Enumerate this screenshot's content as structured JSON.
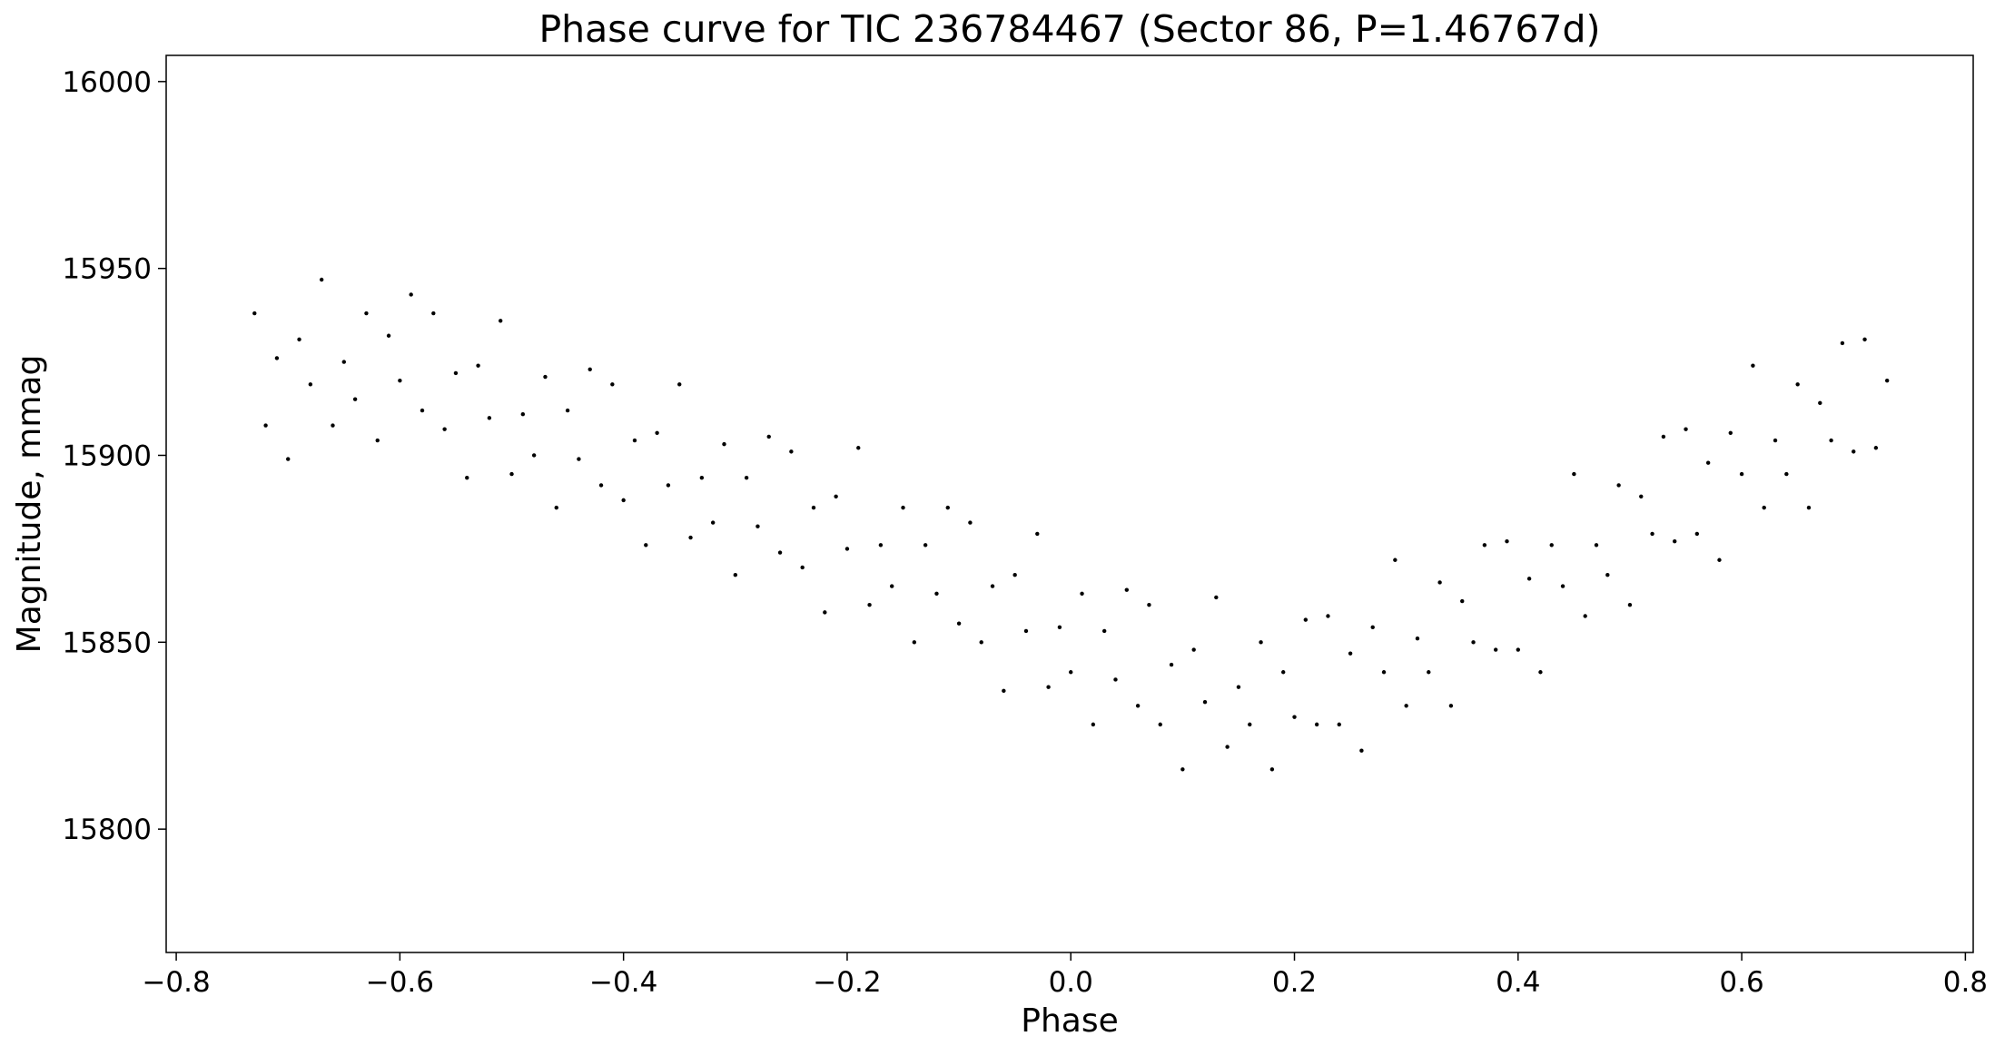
{
  "chart_data": {
    "type": "scatter",
    "title": "Phase curve for TIC 236784467 (Sector 86, P=1.46767d)",
    "x_label": "Phase",
    "y_label": "Magnitude, mmag",
    "color": "#000000",
    "xlim": [
      -0.809,
      0.807
    ],
    "ylim": [
      15767,
      16007
    ],
    "xticks": [
      {
        "value": -0.8,
        "label": "−0.8"
      },
      {
        "value": -0.6,
        "label": "−0.6"
      },
      {
        "value": -0.4,
        "label": "−0.4"
      },
      {
        "value": -0.2,
        "label": "−0.2"
      },
      {
        "value": 0,
        "label": "0.0"
      },
      0.2,
      0.4,
      0.6,
      0.8
    ],
    "yticks": [
      15800,
      15850,
      15900,
      15950,
      16000
    ],
    "x": [
      -0.73,
      -0.72,
      -0.71,
      -0.7,
      -0.69,
      -0.68,
      -0.67,
      -0.66,
      -0.65,
      -0.64,
      -0.63,
      -0.62,
      -0.61,
      -0.6,
      -0.59,
      -0.58,
      -0.57,
      -0.56,
      -0.55,
      -0.54,
      -0.53,
      -0.52,
      -0.51,
      -0.5,
      -0.49,
      -0.48,
      -0.47,
      -0.46,
      -0.45,
      -0.44,
      -0.43,
      -0.42,
      -0.41,
      -0.4,
      -0.39,
      -0.38,
      -0.37,
      -0.36,
      -0.35,
      -0.34,
      -0.33,
      -0.32,
      -0.31,
      -0.3,
      -0.29,
      -0.28,
      -0.27,
      -0.26,
      -0.25,
      -0.24,
      -0.23,
      -0.22,
      -0.21,
      -0.2,
      -0.19,
      -0.18,
      -0.17,
      -0.16,
      -0.15,
      -0.14,
      -0.13,
      -0.12,
      -0.11,
      -0.1,
      -0.09,
      -0.08,
      -0.07,
      -0.06,
      -0.05,
      -0.04,
      -0.03,
      -0.02,
      -0.01,
      0.0,
      0.01,
      0.02,
      0.03,
      0.04,
      0.05,
      0.06,
      0.07,
      0.08,
      0.09,
      0.1,
      0.11,
      0.12,
      0.13,
      0.14,
      0.15,
      0.16,
      0.17,
      0.18,
      0.19,
      0.2,
      0.21,
      0.22,
      0.23,
      0.24,
      0.25,
      0.26,
      0.27,
      0.28,
      0.29,
      0.3,
      0.31,
      0.32,
      0.33,
      0.34,
      0.35,
      0.36,
      0.37,
      0.38,
      0.39,
      0.4,
      0.41,
      0.42,
      0.43,
      0.44,
      0.45,
      0.46,
      0.47,
      0.48,
      0.49,
      0.5,
      0.51,
      0.52,
      0.53,
      0.54,
      0.55,
      0.56,
      0.57,
      0.58,
      0.59,
      0.6,
      0.61,
      0.62,
      0.63,
      0.64,
      0.65,
      0.66,
      0.67,
      0.68,
      0.69,
      0.7,
      0.71,
      0.72,
      0.73
    ],
    "values": [
      15938,
      15908,
      15926,
      15899,
      15931,
      15919,
      15947,
      15908,
      15925,
      15915,
      15938,
      15904,
      15932,
      15920,
      15943,
      15912,
      15938,
      15907,
      15922,
      15894,
      15924,
      15910,
      15936,
      15895,
      15911,
      15900,
      15921,
      15886,
      15912,
      15899,
      15923,
      15892,
      15919,
      15888,
      15904,
      15876,
      15906,
      15892,
      15919,
      15878,
      15894,
      15882,
      15903,
      15868,
      15894,
      15881,
      15905,
      15874,
      15901,
      15870,
      15886,
      15858,
      15889,
      15875,
      15902,
      15860,
      15876,
      15865,
      15886,
      15850,
      15876,
      15863,
      15886,
      15855,
      15882,
      15850,
      15865,
      15837,
      15868,
      15853,
      15879,
      15838,
      15854,
      15842,
      15863,
      15828,
      15853,
      15840,
      15864,
      15833,
      15860,
      15828,
      15844,
      15816,
      15848,
      15834,
      15862,
      15822,
      15838,
      15828,
      15850,
      15816,
      15842,
      15830,
      15856,
      15828,
      15857,
      15828,
      15847,
      15821,
      15854,
      15842,
      15872,
      15833,
      15851,
      15842,
      15866,
      15833,
      15861,
      15850,
      15876,
      15848,
      15877,
      15848,
      15867,
      15842,
      15876,
      15865,
      15895,
      15857,
      15876,
      15868,
      15892,
      15860,
      15889,
      15879,
      15905,
      15877,
      15907,
      15879,
      15898,
      15872,
      15906,
      15895,
      15924,
      15886,
      15904,
      15895,
      15919,
      15886,
      15914,
      15904,
      15930,
      15901,
      15931,
      15902,
      15920
    ]
  }
}
